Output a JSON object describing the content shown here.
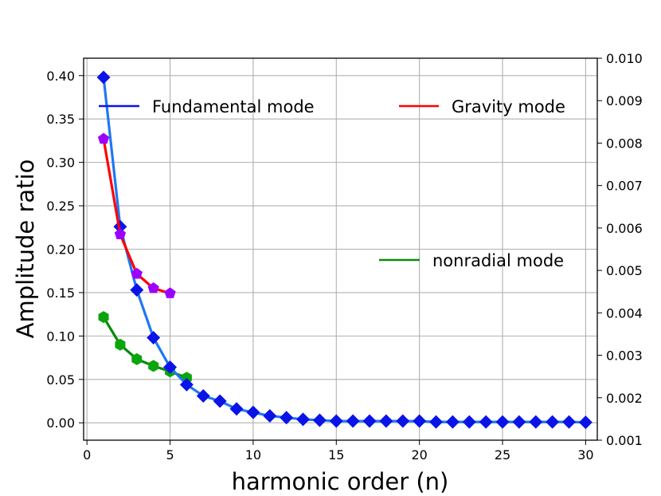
{
  "chart_data": {
    "type": "line",
    "title": "",
    "xlabel": "harmonic order (n)",
    "ylabel": "Amplitude ratio",
    "xlim": [
      -0.2,
      30.7
    ],
    "ylim": [
      -0.02,
      0.42
    ],
    "y2lim": [
      0.001,
      0.01
    ],
    "grid": true,
    "xticks": [
      "0",
      "5",
      "10",
      "15",
      "20",
      "25",
      "30"
    ],
    "yticks": [
      "0.00",
      "0.05",
      "0.10",
      "0.15",
      "0.20",
      "0.25",
      "0.30",
      "0.35",
      "0.40"
    ],
    "y2ticks": [
      "0.001",
      "0.002",
      "0.003",
      "0.004",
      "0.005",
      "0.006",
      "0.007",
      "0.008",
      "0.009",
      "0.010"
    ],
    "series": [
      {
        "name": "Fundamental mode",
        "axis": "left",
        "color": "#0a14e6",
        "line_color": "#1f77f4",
        "marker": "diamond",
        "x": [
          1,
          2,
          3,
          4,
          5,
          6,
          7,
          8,
          9,
          10,
          11,
          12,
          13,
          14,
          15,
          16,
          17,
          18,
          19,
          20,
          21,
          22,
          23,
          24,
          25,
          26,
          27,
          28,
          29,
          30
        ],
        "y": [
          0.398,
          0.226,
          0.153,
          0.098,
          0.064,
          0.044,
          0.031,
          0.025,
          0.016,
          0.012,
          0.008,
          0.006,
          0.004,
          0.003,
          0.002,
          0.002,
          0.002,
          0.002,
          0.002,
          0.002,
          0.001,
          0.001,
          0.001,
          0.001,
          0.001,
          0.001,
          0.001,
          0.001,
          0.001,
          0.0005
        ]
      },
      {
        "name": "Gravity mode",
        "axis": "right",
        "color": "#ff0000",
        "marker_color": "#9b00ff",
        "marker": "pentagon",
        "x": [
          1,
          2,
          3,
          4,
          5
        ],
        "y": [
          0.0081,
          0.00585,
          0.00492,
          0.00458,
          0.00446
        ]
      },
      {
        "name": "nonradial mode",
        "axis": "right",
        "color": "#0a8a0a",
        "marker_color": "#0aa50a",
        "marker": "hexagon",
        "x": [
          1,
          2,
          3,
          4,
          5,
          6
        ],
        "y": [
          0.0039,
          0.00325,
          0.00291,
          0.00275,
          0.00262,
          0.00247
        ]
      }
    ],
    "legend": [
      {
        "label": "Fundamental mode",
        "placement": "upper-left"
      },
      {
        "label": "Gravity mode",
        "placement": "upper-right"
      },
      {
        "label": "nonradial mode",
        "placement": "center-right"
      }
    ]
  }
}
